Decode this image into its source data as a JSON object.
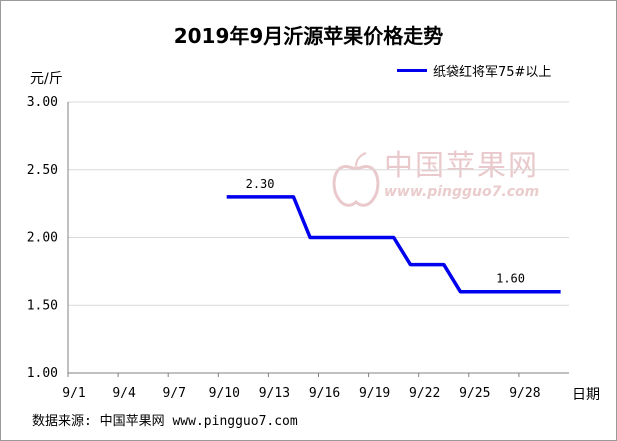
{
  "chart_data": {
    "type": "line",
    "title": "2019年9月沂源苹果价格走势",
    "ylabel": "元/斤",
    "xlabel": "日期",
    "x_ticks": [
      "9/1",
      "9/4",
      "9/7",
      "9/10",
      "9/13",
      "9/16",
      "9/19",
      "9/22",
      "9/25",
      "9/28"
    ],
    "y_ticks": [
      "3.00",
      "2.50",
      "2.00",
      "1.50",
      "1.00"
    ],
    "ylim": [
      1.0,
      3.0
    ],
    "xlim_day": [
      0,
      30
    ],
    "grid": "horizontal",
    "legend_position": "top-right",
    "series": [
      {
        "name": "纸袋红将军75#以上",
        "color": "#0000ee",
        "points": [
          {
            "day": 9.5,
            "value": 2.3
          },
          {
            "day": 13.5,
            "value": 2.3
          },
          {
            "day": 14.5,
            "value": 2.0
          },
          {
            "day": 19.5,
            "value": 2.0
          },
          {
            "day": 20.5,
            "value": 1.8
          },
          {
            "day": 22.5,
            "value": 1.8
          },
          {
            "day": 23.5,
            "value": 1.6
          },
          {
            "day": 29.5,
            "value": 1.6
          }
        ]
      }
    ],
    "data_labels": [
      {
        "day": 11.5,
        "value": 2.3,
        "text": "2.30"
      },
      {
        "day": 26.5,
        "value": 1.6,
        "text": "1.60"
      }
    ]
  },
  "watermark": {
    "text_cn": "中国苹果网",
    "url": "www.pingguo7.com",
    "color": "#e5b8bb"
  },
  "source_note": "数据来源: 中国苹果网 www.pingguo7.com"
}
